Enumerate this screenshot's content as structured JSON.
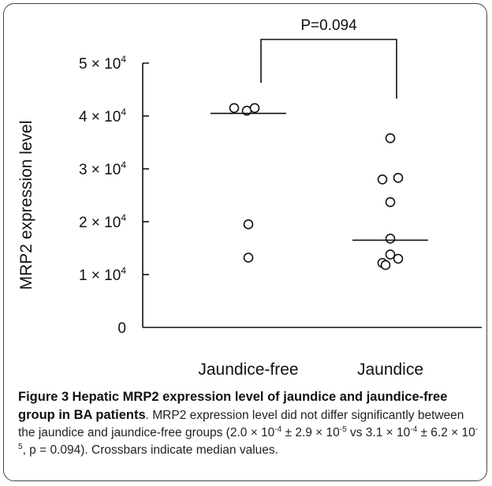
{
  "chart_data": {
    "type": "scatter",
    "ylabel": "MRP2 expression level",
    "ylim": [
      0,
      50000
    ],
    "yticks": [
      {
        "value": 0,
        "mant": "0",
        "exp": ""
      },
      {
        "value": 10000,
        "mant": "1 × 10",
        "exp": "4"
      },
      {
        "value": 20000,
        "mant": "2 × 10",
        "exp": "4"
      },
      {
        "value": 30000,
        "mant": "3 × 10",
        "exp": "4"
      },
      {
        "value": 40000,
        "mant": "4 × 10",
        "exp": "4"
      },
      {
        "value": 50000,
        "mant": "5 × 10",
        "exp": "4"
      }
    ],
    "categories": [
      "Jaundice-free",
      "Jaundice"
    ],
    "groups": [
      {
        "category": "Jaundice-free",
        "values": [
          41500,
          41000,
          41500,
          19500,
          13200
        ],
        "median": 40500
      },
      {
        "category": "Jaundice",
        "values": [
          35800,
          28000,
          28300,
          23700,
          16800,
          13800,
          12200,
          13000,
          11800
        ],
        "median": 16500
      }
    ],
    "annotation": {
      "text": "P=0.094",
      "between": [
        "Jaundice-free",
        "Jaundice"
      ]
    }
  },
  "caption": {
    "figure_label": "Figure 3",
    "title": "Hepatic MRP2 expression level of jaundice and jaundice-free group in BA patients",
    "body": ". MRP2 expression level did not differ significantly between the jaundice and jaundice-free groups (2.0 × 10",
    "exp1": "-4",
    "part2": " ± 2.9 × 10",
    "exp2": "-5",
    "part3": " vs 3.1 × 10",
    "exp3": "-4",
    "part4": " ± 6.2 × 10",
    "exp4": "-5",
    "part5": ", p = 0.094). Crossbars indicate median values."
  }
}
